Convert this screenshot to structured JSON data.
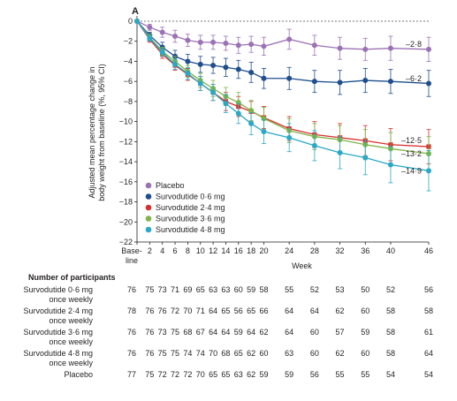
{
  "panel_label": "A",
  "chart_data": {
    "type": "line",
    "ylabel": "Adjusted mean percentage change in body weight from baseline (%, 95% CI)",
    "xlabel": "Week",
    "ylim": [
      -22,
      0
    ],
    "yticks": [
      0,
      -2,
      -4,
      -6,
      -8,
      -10,
      -12,
      -14,
      -16,
      -18,
      -20,
      -22
    ],
    "x": [
      0,
      2,
      4,
      6,
      8,
      10,
      12,
      14,
      16,
      18,
      20,
      24,
      28,
      32,
      36,
      40,
      46
    ],
    "xtick_labels": [
      "Base-line",
      "2",
      "4",
      "6",
      "8",
      "10",
      "12",
      "14",
      "16",
      "18",
      "20",
      "24",
      "28",
      "32",
      "36",
      "40",
      "46"
    ],
    "legend_position": "bottom-left",
    "grid": false,
    "series": [
      {
        "name": "Placebo",
        "color": "#9b72b5",
        "values": [
          0,
          -0.6,
          -1.1,
          -1.5,
          -1.9,
          -2.1,
          -2.1,
          -2.2,
          -2.4,
          -2.3,
          -2.5,
          -1.8,
          -2.4,
          -2.7,
          -2.8,
          -2.7,
          -2.8
        ],
        "ci_half": [
          0,
          0.3,
          0.5,
          0.6,
          0.6,
          0.7,
          0.7,
          0.7,
          0.8,
          0.8,
          0.9,
          1.0,
          1.0,
          1.1,
          1.1,
          1.2,
          1.2
        ],
        "end_label": "–2·8"
      },
      {
        "name": "Survodutide 0·6 mg",
        "color": "#1f4e8c",
        "values": [
          0,
          -1.4,
          -2.6,
          -3.5,
          -4.0,
          -4.3,
          -4.4,
          -4.6,
          -4.8,
          -5.1,
          -5.7,
          -5.7,
          -6.0,
          -6.1,
          -5.9,
          -6.0,
          -6.2
        ],
        "ci_half": [
          0,
          0.3,
          0.5,
          0.6,
          0.7,
          0.8,
          0.8,
          0.9,
          0.9,
          1.0,
          1.0,
          1.1,
          1.1,
          1.2,
          1.2,
          1.2,
          1.3
        ],
        "end_label": "–6·2"
      },
      {
        "name": "Survodutide 2·4 mg",
        "color": "#d7302b",
        "values": [
          0,
          -1.8,
          -3.3,
          -4.4,
          -5.3,
          -6.2,
          -7.1,
          -8.0,
          -8.5,
          -9.0,
          -9.6,
          -10.7,
          -11.3,
          -11.6,
          -11.9,
          -12.3,
          -12.5
        ],
        "ci_half": [
          0,
          0.3,
          0.4,
          0.5,
          0.6,
          0.7,
          0.8,
          0.9,
          1.0,
          1.0,
          1.1,
          1.2,
          1.3,
          1.4,
          1.5,
          1.6,
          1.7
        ],
        "end_label": "–12·5"
      },
      {
        "name": "Survodutide 3·6 mg",
        "color": "#7db54a",
        "values": [
          0,
          -1.6,
          -3.0,
          -4.0,
          -5.0,
          -5.9,
          -6.7,
          -7.5,
          -8.1,
          -8.9,
          -9.7,
          -10.9,
          -11.5,
          -11.8,
          -12.3,
          -12.7,
          -13.2
        ],
        "ci_half": [
          0,
          0.3,
          0.4,
          0.5,
          0.6,
          0.7,
          0.8,
          0.9,
          1.0,
          1.0,
          1.1,
          1.2,
          1.3,
          1.4,
          1.5,
          1.6,
          1.7
        ],
        "end_label": "–13·2"
      },
      {
        "name": "Survodutide 4·8 mg",
        "color": "#2aa8c7",
        "values": [
          0,
          -1.7,
          -3.1,
          -4.3,
          -5.2,
          -6.2,
          -7.1,
          -8.2,
          -9.2,
          -10.2,
          -11.0,
          -11.6,
          -12.4,
          -13.1,
          -13.6,
          -14.3,
          -14.9
        ],
        "ci_half": [
          0,
          0.3,
          0.4,
          0.5,
          0.6,
          0.7,
          0.8,
          0.9,
          1.0,
          1.1,
          1.2,
          1.4,
          1.5,
          1.6,
          1.7,
          1.8,
          2.0
        ],
        "end_label": "–14·9"
      }
    ]
  },
  "participants": {
    "title": "Number of participants",
    "weeks": [
      "0",
      "2",
      "4",
      "6",
      "8",
      "10",
      "12",
      "14",
      "16",
      "18",
      "20",
      "24",
      "28",
      "32",
      "36",
      "40",
      "46"
    ],
    "rows": [
      {
        "label_line1": "Survodutide 0·6 mg",
        "label_line2": "once weekly",
        "counts": [
          "76",
          "75",
          "73",
          "71",
          "69",
          "65",
          "63",
          "63",
          "60",
          "59",
          "58",
          "55",
          "52",
          "53",
          "50",
          "52",
          "56"
        ]
      },
      {
        "label_line1": "Survodutide 2·4 mg",
        "label_line2": "once weekly",
        "counts": [
          "78",
          "76",
          "76",
          "72",
          "70",
          "71",
          "64",
          "65",
          "56",
          "65",
          "66",
          "64",
          "64",
          "62",
          "60",
          "58",
          "58"
        ]
      },
      {
        "label_line1": "Survodutide 3·6 mg",
        "label_line2": "once weekly",
        "counts": [
          "76",
          "76",
          "73",
          "75",
          "68",
          "67",
          "64",
          "64",
          "59",
          "64",
          "62",
          "64",
          "60",
          "57",
          "59",
          "58",
          "61"
        ]
      },
      {
        "label_line1": "Survodutide 4·8 mg",
        "label_line2": "once weekly",
        "counts": [
          "76",
          "76",
          "75",
          "75",
          "74",
          "74",
          "70",
          "68",
          "65",
          "62",
          "60",
          "63",
          "60",
          "62",
          "60",
          "58",
          "64"
        ]
      },
      {
        "label_line1": "Placebo",
        "label_line2": "",
        "counts": [
          "77",
          "75",
          "72",
          "72",
          "72",
          "70",
          "65",
          "65",
          "63",
          "62",
          "59",
          "59",
          "56",
          "55",
          "55",
          "54",
          "54"
        ]
      }
    ]
  }
}
